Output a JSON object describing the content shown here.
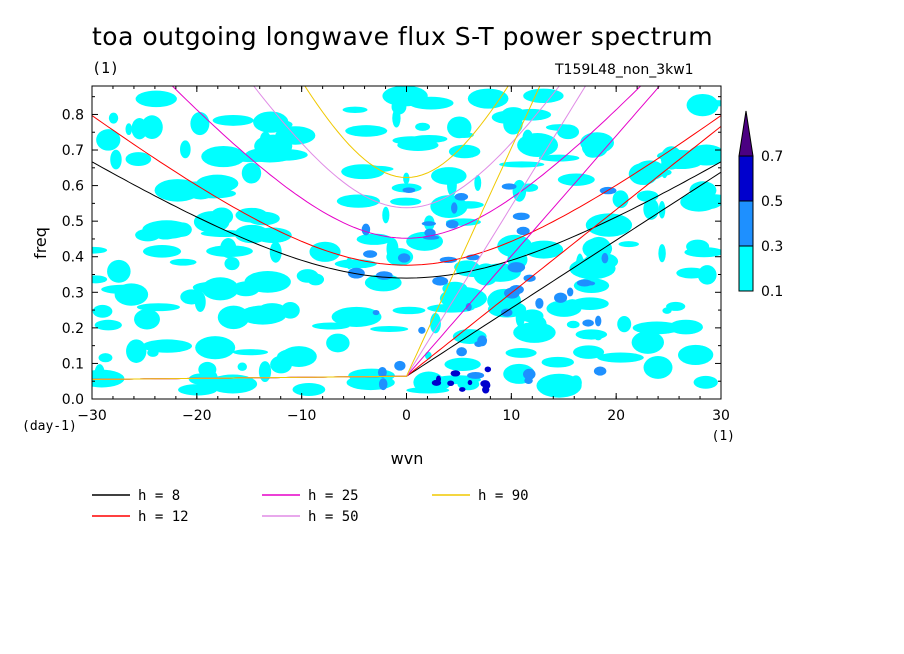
{
  "title": "toa outgoing longwave flux S-T power spectrum",
  "subtitle_left": "(1)",
  "subtitle_right": "T159L48_non_3kw1",
  "chart_data": {
    "type": "heatmap",
    "xlabel": "wvn",
    "ylabel": "freq",
    "x_unit": "(1)",
    "y_unit": "(day-1)",
    "xlim": [
      -30,
      30
    ],
    "ylim": [
      0,
      0.88
    ],
    "x_ticks": [
      -30,
      -20,
      -10,
      0,
      10,
      20,
      30
    ],
    "y_ticks": [
      0.0,
      0.1,
      0.2,
      0.3,
      0.4,
      0.5,
      0.6,
      0.7,
      0.8
    ],
    "colorbar": {
      "levels": [
        0.1,
        0.3,
        0.5,
        0.7
      ],
      "colors": [
        "#00ffff",
        "#1e90ff",
        "#0000cd",
        "#4b0082"
      ]
    },
    "series": [
      {
        "name": "h =  8",
        "h": 8,
        "color": "#000000"
      },
      {
        "name": "h = 12",
        "h": 12,
        "color": "#ff0000"
      },
      {
        "name": "h = 25",
        "h": 25,
        "color": "#e600c8"
      },
      {
        "name": "h = 50",
        "h": 50,
        "color": "#e08ce6"
      },
      {
        "name": "h = 90",
        "h": 90,
        "color": "#f0c800"
      }
    ],
    "legend_position": "bottom"
  }
}
